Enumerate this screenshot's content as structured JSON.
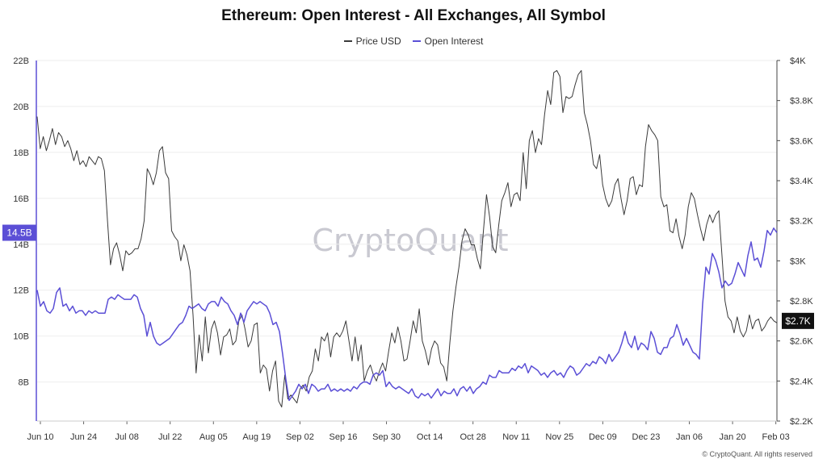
{
  "chart_data": {
    "type": "line",
    "title": "Ethereum: Open Interest - All Exchanges, All Symbol",
    "x_ticks": [
      "Jun 10",
      "Jun 24",
      "Jul 08",
      "Jul 22",
      "Aug 05",
      "Aug 19",
      "Sep 02",
      "Sep 16",
      "Sep 30",
      "Oct 14",
      "Oct 28",
      "Nov 11",
      "Nov 25",
      "Dec 09",
      "Dec 23",
      "Jan 06",
      "Jan 20",
      "Feb 03"
    ],
    "y_left": {
      "ticks": [
        "22B",
        "20B",
        "18B",
        "16B",
        "14B",
        "12B",
        "10B",
        "8B"
      ],
      "ylim": [
        6.3,
        22
      ]
    },
    "y_right": {
      "ticks": [
        "$4K",
        "$3.8K",
        "$3.6K",
        "$3.4K",
        "$3.2K",
        "$3K",
        "$2.8K",
        "$2.6K",
        "$2.4K",
        "$2.2K"
      ],
      "ylim": [
        2200,
        4000
      ]
    },
    "current_left_label": "14.5B",
    "current_right_label": "$2.7K",
    "series": [
      {
        "name": "Price USD",
        "axis": "right",
        "color": "#3a3a3a",
        "values": [
          3720,
          3560,
          3620,
          3550,
          3600,
          3660,
          3580,
          3640,
          3620,
          3570,
          3600,
          3560,
          3500,
          3550,
          3480,
          3500,
          3470,
          3520,
          3500,
          3480,
          3520,
          3510,
          3450,
          3200,
          2980,
          3060,
          3090,
          3030,
          2950,
          3050,
          3030,
          3040,
          3060,
          3060,
          3110,
          3200,
          3460,
          3430,
          3380,
          3440,
          3550,
          3570,
          3440,
          3410,
          3150,
          3120,
          3100,
          3000,
          3080,
          3030,
          2950,
          2730,
          2440,
          2630,
          2500,
          2720,
          2540,
          2660,
          2700,
          2640,
          2530,
          2620,
          2630,
          2660,
          2580,
          2600,
          2700,
          2730,
          2660,
          2570,
          2600,
          2680,
          2690,
          2440,
          2480,
          2460,
          2350,
          2450,
          2500,
          2300,
          2270,
          2430,
          2310,
          2330,
          2310,
          2290,
          2360,
          2380,
          2350,
          2420,
          2450,
          2560,
          2500,
          2620,
          2600,
          2640,
          2520,
          2620,
          2640,
          2620,
          2650,
          2700,
          2600,
          2500,
          2620,
          2500,
          2580,
          2400,
          2450,
          2480,
          2430,
          2400,
          2450,
          2490,
          2450,
          2550,
          2640,
          2590,
          2670,
          2600,
          2500,
          2510,
          2600,
          2700,
          2640,
          2760,
          2600,
          2550,
          2480,
          2560,
          2600,
          2580,
          2490,
          2470,
          2400,
          2590,
          2750,
          2870,
          2970,
          3100,
          3160,
          3130,
          3080,
          3080,
          3010,
          2960,
          3150,
          3330,
          3220,
          3070,
          3040,
          3180,
          3300,
          3340,
          3390,
          3270,
          3330,
          3340,
          3300,
          3540,
          3360,
          3600,
          3650,
          3540,
          3610,
          3580,
          3730,
          3850,
          3780,
          3940,
          3950,
          3920,
          3740,
          3820,
          3810,
          3820,
          3880,
          3930,
          3950,
          3740,
          3680,
          3600,
          3480,
          3460,
          3530,
          3380,
          3310,
          3270,
          3300,
          3380,
          3410,
          3310,
          3230,
          3300,
          3410,
          3420,
          3330,
          3380,
          3370,
          3570,
          3680,
          3650,
          3630,
          3600,
          3320,
          3270,
          3280,
          3150,
          3140,
          3210,
          3120,
          3060,
          3130,
          3270,
          3340,
          3310,
          3230,
          3160,
          3100,
          3180,
          3230,
          3190,
          3230,
          3250,
          3030,
          2800,
          2720,
          2700,
          2640,
          2720,
          2650,
          2620,
          2650,
          2730,
          2660,
          2700,
          2710,
          2650,
          2670,
          2700,
          2720,
          2700,
          2690
        ]
      },
      {
        "name": "Open Interest",
        "axis": "left",
        "color": "#5b4fd6",
        "values": [
          12.0,
          11.3,
          11.5,
          11.1,
          11.0,
          11.2,
          11.9,
          12.1,
          11.3,
          11.4,
          11.1,
          11.3,
          11.0,
          11.1,
          11.1,
          10.9,
          11.1,
          11.0,
          11.1,
          11.0,
          11.0,
          11.0,
          11.6,
          11.7,
          11.6,
          11.8,
          11.7,
          11.6,
          11.6,
          11.6,
          11.8,
          11.7,
          11.2,
          10.9,
          10.0,
          10.6,
          10.0,
          9.7,
          9.6,
          9.7,
          9.8,
          9.9,
          10.1,
          10.3,
          10.5,
          10.6,
          10.9,
          11.3,
          11.2,
          11.3,
          11.4,
          11.2,
          11.1,
          11.4,
          11.5,
          11.5,
          11.3,
          11.7,
          11.5,
          11.4,
          11.1,
          10.9,
          10.5,
          11.0,
          10.6,
          11.1,
          11.3,
          11.5,
          11.4,
          11.5,
          11.4,
          11.3,
          11.0,
          10.5,
          10.6,
          10.2,
          9.2,
          8.1,
          7.2,
          7.4,
          7.6,
          7.9,
          7.7,
          7.9,
          7.5,
          7.9,
          7.8,
          7.6,
          7.7,
          7.7,
          7.9,
          7.6,
          7.7,
          7.6,
          7.7,
          7.6,
          7.7,
          7.6,
          7.8,
          7.7,
          7.9,
          8.0,
          8.0,
          7.9,
          8.3,
          8.4,
          8.3,
          8.5,
          7.8,
          8.0,
          7.8,
          7.7,
          7.8,
          7.7,
          7.6,
          7.5,
          7.7,
          7.4,
          7.3,
          7.5,
          7.4,
          7.5,
          7.3,
          7.5,
          7.7,
          7.4,
          7.6,
          7.5,
          7.5,
          7.7,
          7.4,
          7.7,
          7.8,
          7.6,
          7.8,
          7.5,
          7.7,
          7.8,
          8.0,
          7.9,
          8.3,
          8.2,
          8.2,
          8.5,
          8.4,
          8.4,
          8.4,
          8.6,
          8.5,
          8.7,
          8.6,
          8.8,
          8.4,
          8.7,
          8.6,
          8.5,
          8.3,
          8.4,
          8.2,
          8.4,
          8.5,
          8.3,
          8.4,
          8.2,
          8.5,
          8.7,
          8.6,
          8.3,
          8.4,
          8.6,
          8.8,
          8.7,
          8.9,
          8.8,
          9.1,
          9.0,
          8.8,
          9.2,
          8.9,
          9.1,
          9.3,
          9.7,
          10.2,
          9.7,
          9.5,
          10.0,
          9.4,
          9.7,
          9.6,
          9.4,
          10.2,
          9.9,
          9.3,
          9.2,
          9.5,
          9.5,
          9.9,
          10.0,
          10.5,
          10.1,
          9.6,
          9.9,
          9.6,
          9.3,
          9.2,
          9.0,
          11.4,
          13.0,
          12.7,
          13.6,
          13.3,
          12.8,
          12.1,
          12.4,
          12.2,
          12.3,
          12.7,
          13.2,
          12.9,
          12.6,
          13.5,
          14.1,
          13.3,
          13.4,
          13.0,
          13.7,
          14.6,
          14.4,
          14.7,
          14.5
        ]
      }
    ]
  },
  "watermark": "CryptoQuant",
  "copyright": "© CryptoQuant. All rights reserved"
}
